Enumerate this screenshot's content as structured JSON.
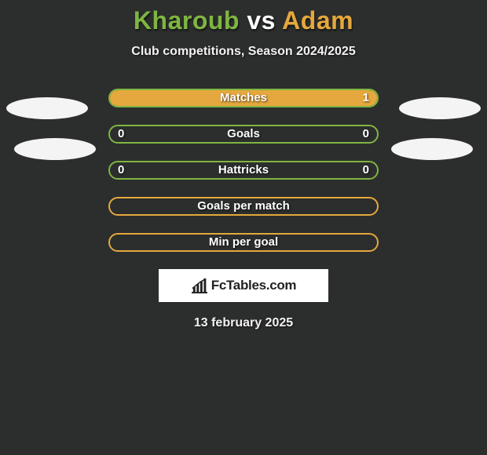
{
  "title": {
    "player1": "Kharoub",
    "vs": "vs",
    "player2": "Adam",
    "player1_color": "#7fb542",
    "vs_color": "#ffffff",
    "player2_color": "#e5a83e"
  },
  "subtitle": "Club competitions, Season 2024/2025",
  "bars": {
    "track_width": 344,
    "track_height": 24,
    "border_radius": 12,
    "gap": 22,
    "items": [
      {
        "label": "Matches",
        "left": null,
        "right": "1",
        "fill_side": "right",
        "fill_pct": 100,
        "fill_color": "#e5a83e",
        "border_color": "#7fb542"
      },
      {
        "label": "Goals",
        "left": "0",
        "right": "0",
        "fill_side": null,
        "fill_pct": 0,
        "fill_color": null,
        "border_color": "#7fb542"
      },
      {
        "label": "Hattricks",
        "left": "0",
        "right": "0",
        "fill_side": null,
        "fill_pct": 0,
        "fill_color": null,
        "border_color": "#7fb542"
      },
      {
        "label": "Goals per match",
        "left": null,
        "right": null,
        "fill_side": null,
        "fill_pct": 0,
        "fill_color": null,
        "border_color": "#e5a83e"
      },
      {
        "label": "Min per goal",
        "left": null,
        "right": null,
        "fill_side": null,
        "fill_pct": 0,
        "fill_color": null,
        "border_color": "#e5a83e"
      }
    ]
  },
  "ellipses": {
    "color": "#f4f4f4",
    "items": [
      "ell-tl",
      "ell-tr",
      "ell-bl",
      "ell-br"
    ]
  },
  "logo": {
    "text": "FcTables.com",
    "chart_color": "#222222",
    "background": "#ffffff"
  },
  "date": "13 february 2025",
  "colors": {
    "background": "#2c2e2d",
    "text_light": "#f2f2f2",
    "shadow": "rgba(0,0,0,0.6)"
  }
}
